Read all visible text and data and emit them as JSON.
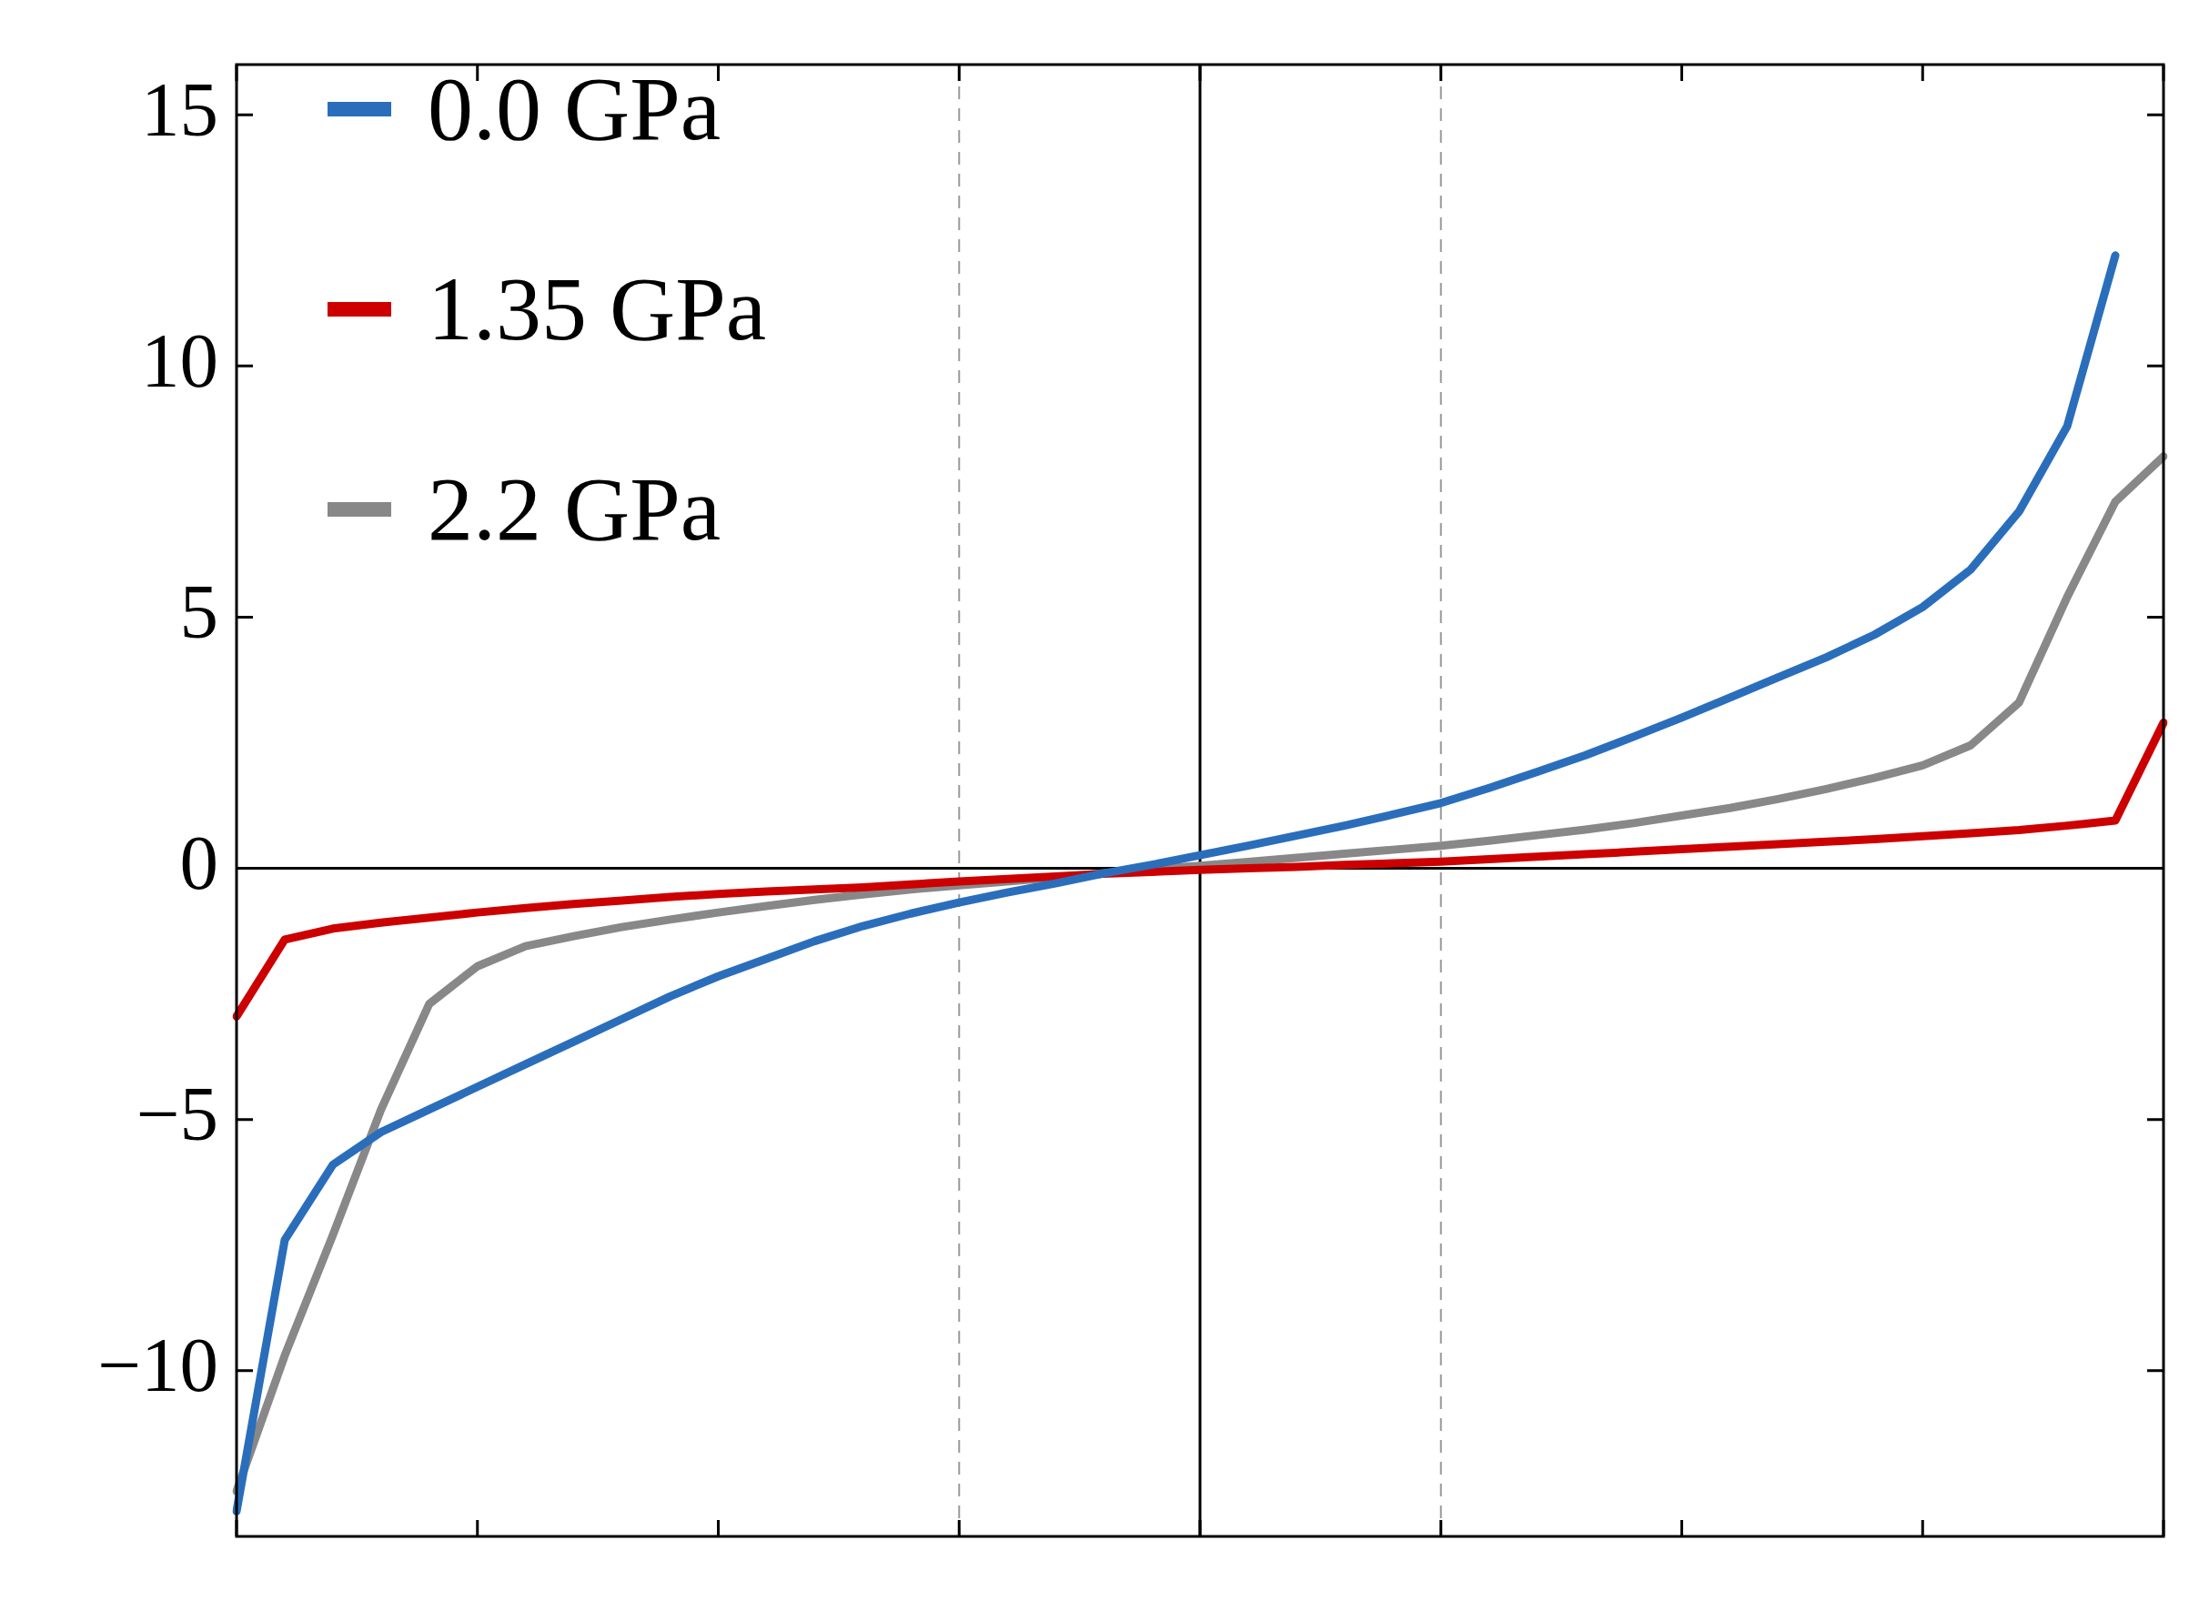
{
  "chart_data": {
    "type": "line",
    "categories": [
      null,
      null,
      null,
      null,
      null,
      null,
      null,
      null,
      null,
      null,
      null,
      null,
      null,
      null,
      null,
      null,
      null,
      null,
      null,
      null,
      null,
      null,
      null,
      null,
      null,
      null,
      null,
      null,
      null,
      null,
      null,
      null,
      null,
      null,
      null,
      null,
      null,
      null,
      null,
      null,
      null
    ],
    "ylim": [
      -13.3,
      16
    ],
    "yticks": [
      {
        "value": -10,
        "label": "−10"
      },
      {
        "value": -5,
        "label": "−5"
      },
      0,
      5,
      10,
      15
    ],
    "tick_labels": "y",
    "grid": "x",
    "legend": "top left",
    "marker": "none",
    "line_style": "solid",
    "ref_lines": [
      {
        "axis": "y",
        "value": 0,
        "line_style": "solid",
        "color": "#000000"
      }
    ],
    "series": [
      {
        "name": "0.0 GPa",
        "color": "#2a6ebb",
        "values": [
          -12.8,
          -7.4,
          -5.9,
          -5.25,
          -4.8,
          -4.35,
          -3.9,
          -3.45,
          -3.0,
          -2.55,
          -2.15,
          -1.8,
          -1.45,
          -1.15,
          -0.9,
          -0.68,
          -0.48,
          -0.3,
          -0.1,
          0.07,
          0.26,
          0.45,
          0.65,
          0.85,
          1.07,
          1.3,
          1.6,
          1.92,
          2.25,
          2.62,
          3.0,
          3.4,
          3.8,
          4.2,
          4.65,
          5.2,
          5.95,
          7.1,
          8.8,
          12.2,
          null
        ]
      },
      {
        "name": "1.35 GPa",
        "color": "#cc0000",
        "values": [
          -2.95,
          -1.42,
          -1.2,
          -1.08,
          -0.98,
          -0.88,
          -0.79,
          -0.71,
          -0.64,
          -0.57,
          -0.51,
          -0.46,
          -0.42,
          -0.38,
          -0.32,
          -0.26,
          -0.21,
          -0.16,
          -0.11,
          -0.07,
          -0.03,
          0.0,
          0.03,
          0.07,
          0.1,
          0.13,
          0.18,
          0.23,
          0.28,
          0.33,
          0.38,
          0.43,
          0.48,
          0.53,
          0.58,
          0.64,
          0.7,
          0.76,
          0.85,
          0.95,
          2.9
        ]
      },
      {
        "name": "2.2 GPa",
        "color": "#888888",
        "values": [
          -12.4,
          -9.7,
          -7.3,
          -4.8,
          -2.7,
          -1.95,
          -1.55,
          -1.35,
          -1.17,
          -1.02,
          -0.88,
          -0.75,
          -0.63,
          -0.52,
          -0.42,
          -0.34,
          -0.26,
          -0.18,
          -0.1,
          -0.02,
          0.05,
          0.13,
          0.21,
          0.29,
          0.37,
          0.45,
          0.55,
          0.66,
          0.77,
          0.9,
          1.05,
          1.2,
          1.38,
          1.58,
          1.8,
          2.05,
          2.45,
          3.3,
          5.4,
          7.3,
          8.2
        ]
      }
    ]
  }
}
